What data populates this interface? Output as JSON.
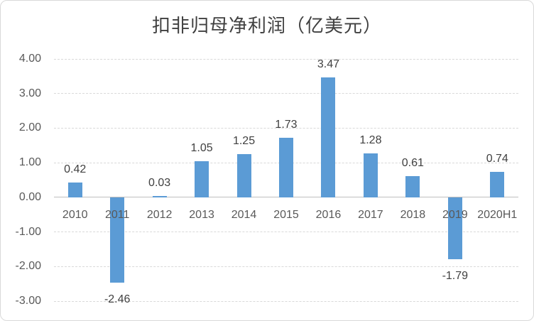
{
  "chart_data": {
    "type": "bar",
    "title": "扣非归母净利润（亿美元）",
    "categories": [
      "2010",
      "2011",
      "2012",
      "2013",
      "2014",
      "2015",
      "2016",
      "2017",
      "2018",
      "2019",
      "2020H1"
    ],
    "values": [
      0.42,
      -2.46,
      0.03,
      1.05,
      1.25,
      1.73,
      3.47,
      1.28,
      0.61,
      -1.79,
      0.74
    ],
    "data_labels": [
      "0.42",
      "-2.46",
      "0.03",
      "1.05",
      "1.25",
      "1.73",
      "3.47",
      "1.28",
      "0.61",
      "-1.79",
      "0.74"
    ],
    "y_tick_labels": [
      "4.00",
      "3.00",
      "2.00",
      "1.00",
      "0.00",
      "-1.00",
      "-2.00",
      "-3.00"
    ],
    "y_tick_values": [
      4,
      3,
      2,
      1,
      0,
      -1,
      -2,
      -3
    ],
    "ylim": [
      -3,
      4
    ],
    "xlabel": "",
    "ylabel": "",
    "grid": true,
    "grid_style": "dashed",
    "legend": "none",
    "colors": {
      "bar": "#5B9BD5",
      "gridline": "#D9D9D9",
      "zero_axis_line": "#BFBFBF",
      "axis_text": "#595959",
      "data_label_text": "#404040",
      "title_text": "#404040",
      "frame_border": "#D9D9D9",
      "background": "#FFFFFF"
    }
  }
}
